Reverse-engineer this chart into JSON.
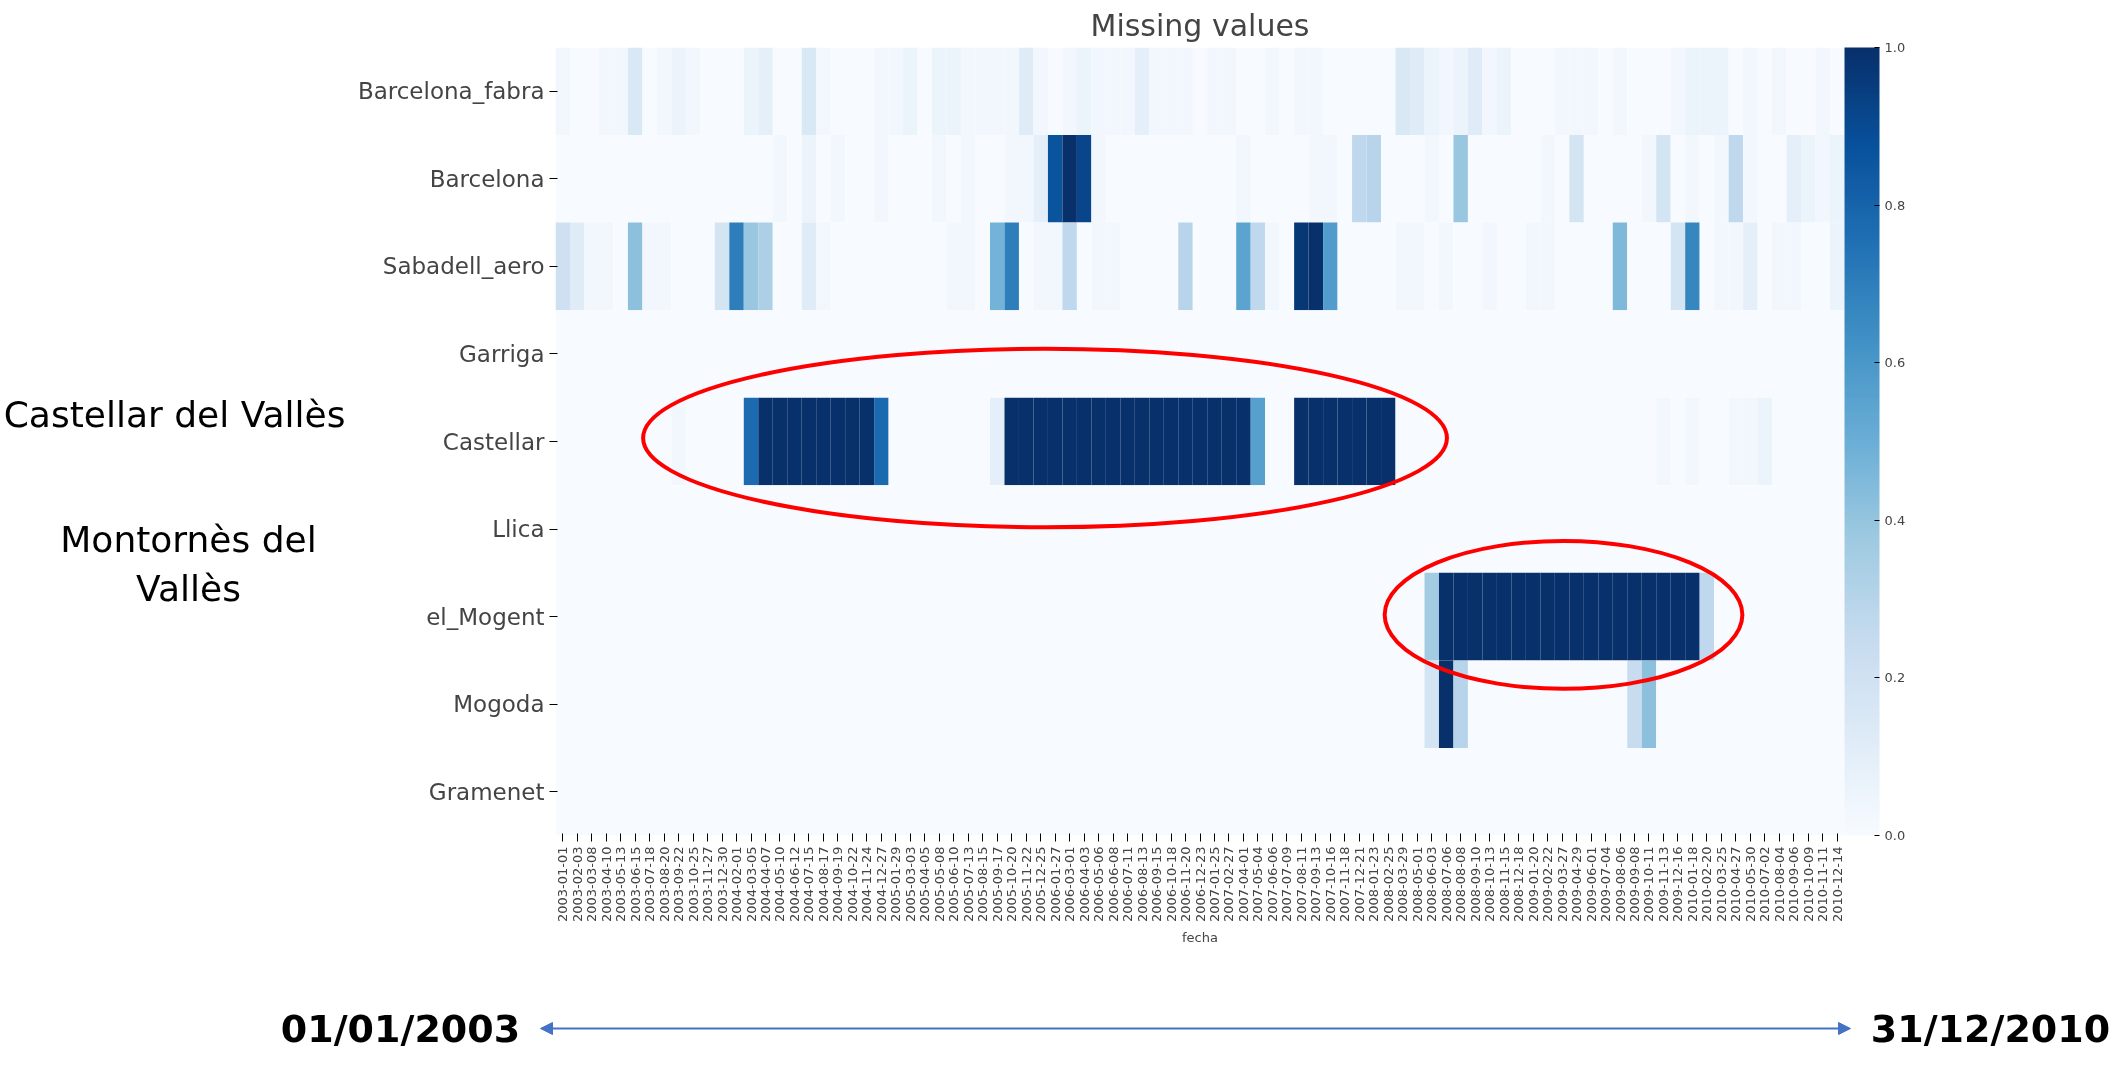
{
  "chart_data": {
    "type": "heatmap",
    "title": "Missing values",
    "xlabel": "fecha",
    "categories": [
      "2003-01-01",
      "2003-02-03",
      "2003-03-08",
      "2003-04-10",
      "2003-05-13",
      "2003-06-15",
      "2003-07-18",
      "2003-08-20",
      "2003-09-22",
      "2003-10-25",
      "2003-11-27",
      "2003-12-30",
      "2004-02-01",
      "2004-03-05",
      "2004-04-07",
      "2004-05-10",
      "2004-06-12",
      "2004-07-15",
      "2004-08-17",
      "2004-09-19",
      "2004-10-22",
      "2004-11-24",
      "2004-12-27",
      "2005-01-29",
      "2005-03-03",
      "2005-04-05",
      "2005-05-08",
      "2005-06-10",
      "2005-07-13",
      "2005-08-15",
      "2005-09-17",
      "2005-10-20",
      "2005-11-22",
      "2005-12-25",
      "2006-01-27",
      "2006-03-01",
      "2006-04-03",
      "2006-05-06",
      "2006-06-08",
      "2006-07-11",
      "2006-08-13",
      "2006-09-15",
      "2006-10-18",
      "2006-11-20",
      "2006-12-23",
      "2007-01-25",
      "2007-02-27",
      "2007-04-01",
      "2007-05-04",
      "2007-06-06",
      "2007-07-09",
      "2007-08-11",
      "2007-09-13",
      "2007-10-16",
      "2007-11-18",
      "2007-12-21",
      "2008-01-23",
      "2008-02-25",
      "2008-03-29",
      "2008-05-01",
      "2008-06-03",
      "2008-07-06",
      "2008-08-08",
      "2008-09-10",
      "2008-10-13",
      "2008-11-15",
      "2008-12-18",
      "2009-01-20",
      "2009-02-22",
      "2009-03-27",
      "2009-04-29",
      "2009-06-01",
      "2009-07-04",
      "2009-08-06",
      "2009-09-08",
      "2009-10-11",
      "2009-11-13",
      "2009-12-16",
      "2010-01-18",
      "2010-02-20",
      "2010-03-25",
      "2010-04-27",
      "2010-05-30",
      "2010-07-02",
      "2010-08-04",
      "2010-09-06",
      "2010-10-09",
      "2010-11-11",
      "2010-12-14"
    ],
    "y_categories": [
      "Barcelona_fabra",
      "Barcelona",
      "Sabadell_aero",
      "Garriga",
      "Castellar",
      "Llica",
      "el_Mogent",
      "Mogoda",
      "Gramenet"
    ],
    "cells": [
      [
        0.03,
        0,
        0,
        0.03,
        0.03,
        0.15,
        0,
        0.03,
        0.06,
        0.03,
        0,
        0,
        0,
        0.06,
        0.09,
        0,
        0,
        0.15,
        0.03,
        0,
        0,
        0,
        0.03,
        0.03,
        0.06,
        0,
        0.06,
        0.06,
        0.03,
        0.03,
        0.03,
        0.03,
        0.12,
        0.03,
        0,
        0.03,
        0.06,
        0.03,
        0.03,
        0.03,
        0.09,
        0.03,
        0.03,
        0.03,
        0,
        0.03,
        0.03,
        0,
        0,
        0.03,
        0,
        0.03,
        0.03,
        0,
        0,
        0,
        0,
        0,
        0.15,
        0.12,
        0.06,
        0.03,
        0.06,
        0.12,
        0.03,
        0.06,
        0,
        0,
        0,
        0.03,
        0.03,
        0.03,
        0,
        0.03,
        0,
        0,
        0,
        0.03,
        0.06,
        0.06,
        0.06,
        0,
        0.03,
        0,
        0.03,
        0,
        0,
        0.03,
        0
      ],
      [
        0,
        0,
        0,
        0,
        0,
        0,
        0,
        0,
        0,
        0,
        0,
        0,
        0,
        0,
        0,
        0.03,
        0,
        0.06,
        0,
        0.03,
        0,
        0,
        0.03,
        0,
        0,
        0,
        0.03,
        0,
        0.03,
        0,
        0,
        0.03,
        0.03,
        0.09,
        0.86,
        1,
        0.92,
        0.03,
        0,
        0,
        0,
        0,
        0,
        0,
        0,
        0,
        0,
        0.03,
        0,
        0,
        0,
        0,
        0.03,
        0.03,
        0,
        0.27,
        0.3,
        0,
        0,
        0,
        0.03,
        0,
        0.39,
        0,
        0,
        0,
        0,
        0,
        0.03,
        0,
        0.18,
        0,
        0,
        0,
        0,
        0.03,
        0.18,
        0,
        0.03,
        0,
        0.03,
        0.27,
        0.03,
        0,
        0,
        0.09,
        0.06,
        0.03,
        0.06
      ],
      [
        0.21,
        0.12,
        0.03,
        0.03,
        0,
        0.42,
        0.03,
        0.03,
        0,
        0,
        0,
        0.18,
        0.7,
        0.39,
        0.33,
        0,
        0,
        0.12,
        0.03,
        0,
        0,
        0,
        0,
        0,
        0,
        0,
        0,
        0.03,
        0.03,
        0,
        0.48,
        0.7,
        0,
        0.03,
        0.03,
        0.27,
        0,
        0.03,
        0.03,
        0,
        0,
        0,
        0,
        0.3,
        0,
        0,
        0,
        0.55,
        0.27,
        0.03,
        0,
        0.97,
        1,
        0.58,
        0,
        0,
        0,
        0,
        0.03,
        0.03,
        0,
        0.03,
        0,
        0,
        0.03,
        0,
        0,
        0.03,
        0.03,
        0,
        0,
        0,
        0,
        0.45,
        0,
        0,
        0,
        0.18,
        0.67,
        0,
        0.03,
        0.03,
        0.09,
        0,
        0.03,
        0.03,
        0,
        0,
        0.06
      ],
      [
        0,
        0,
        0,
        0,
        0,
        0,
        0,
        0,
        0,
        0,
        0,
        0,
        0,
        0,
        0,
        0,
        0,
        0,
        0,
        0,
        0,
        0,
        0,
        0,
        0,
        0,
        0,
        0,
        0,
        0,
        0,
        0,
        0,
        0,
        0,
        0,
        0,
        0,
        0,
        0,
        0,
        0,
        0,
        0,
        0,
        0,
        0,
        0,
        0,
        0,
        0,
        0,
        0,
        0,
        0,
        0,
        0,
        0,
        0,
        0,
        0,
        0,
        0,
        0,
        0,
        0,
        0,
        0,
        0,
        0,
        0,
        0,
        0,
        0,
        0,
        0,
        0,
        0,
        0,
        0,
        0,
        0,
        0,
        0,
        0,
        0,
        0,
        0,
        0
      ],
      [
        0,
        0,
        0,
        0,
        0,
        0,
        0,
        0,
        0.03,
        0,
        0,
        0,
        0,
        0.77,
        1,
        1,
        1,
        1,
        1,
        1,
        1,
        1,
        0.78,
        0,
        0,
        0,
        0,
        0,
        0,
        0,
        0.09,
        1,
        1,
        1,
        1,
        1,
        1,
        1,
        1,
        1,
        1,
        1,
        1,
        1,
        1,
        1,
        1,
        1,
        0.56,
        0,
        0,
        1,
        1,
        1,
        1,
        1,
        1,
        1,
        0,
        0,
        0,
        0,
        0,
        0,
        0,
        0,
        0,
        0,
        0,
        0,
        0,
        0,
        0,
        0,
        0,
        0,
        0.03,
        0,
        0.03,
        0,
        0,
        0.03,
        0.03,
        0.06,
        0,
        0,
        0,
        0,
        0
      ],
      [
        0,
        0,
        0,
        0,
        0,
        0,
        0,
        0,
        0,
        0,
        0,
        0,
        0,
        0,
        0,
        0,
        0,
        0,
        0,
        0,
        0,
        0,
        0,
        0,
        0,
        0,
        0,
        0,
        0,
        0,
        0,
        0,
        0,
        0,
        0,
        0,
        0,
        0,
        0,
        0,
        0,
        0,
        0,
        0,
        0,
        0,
        0,
        0,
        0,
        0,
        0,
        0,
        0,
        0,
        0,
        0,
        0,
        0,
        0,
        0,
        0,
        0,
        0,
        0,
        0,
        0,
        0,
        0,
        0,
        0,
        0,
        0,
        0,
        0,
        0,
        0,
        0,
        0,
        0,
        0,
        0,
        0,
        0,
        0,
        0,
        0,
        0,
        0,
        0
      ],
      [
        0,
        0,
        0,
        0,
        0,
        0,
        0,
        0,
        0,
        0,
        0,
        0,
        0,
        0,
        0,
        0,
        0,
        0,
        0,
        0,
        0,
        0,
        0,
        0,
        0,
        0,
        0,
        0,
        0,
        0,
        0,
        0,
        0,
        0,
        0,
        0,
        0,
        0,
        0,
        0,
        0,
        0,
        0,
        0,
        0,
        0,
        0,
        0,
        0,
        0,
        0,
        0,
        0,
        0,
        0,
        0,
        0,
        0,
        0,
        0,
        0.36,
        1,
        1,
        1,
        1,
        1,
        1,
        1,
        1,
        1,
        1,
        1,
        1,
        1,
        1,
        1,
        1,
        1,
        1,
        0.27,
        0,
        0,
        0,
        0,
        0,
        0,
        0,
        0,
        0
      ],
      [
        0,
        0,
        0,
        0,
        0,
        0,
        0,
        0,
        0,
        0,
        0,
        0,
        0,
        0,
        0,
        0,
        0,
        0,
        0,
        0,
        0,
        0,
        0,
        0,
        0,
        0,
        0,
        0,
        0,
        0,
        0,
        0,
        0,
        0,
        0,
        0,
        0,
        0,
        0,
        0,
        0,
        0,
        0,
        0,
        0,
        0,
        0,
        0,
        0,
        0,
        0,
        0,
        0,
        0,
        0,
        0,
        0,
        0,
        0,
        0,
        0.18,
        1,
        0.3,
        0,
        0,
        0,
        0,
        0,
        0,
        0,
        0,
        0,
        0,
        0,
        0.24,
        0.42,
        0,
        0,
        0,
        0,
        0,
        0,
        0,
        0,
        0,
        0,
        0,
        0,
        0
      ],
      [
        0,
        0,
        0,
        0,
        0,
        0,
        0,
        0,
        0,
        0,
        0,
        0,
        0,
        0,
        0,
        0,
        0,
        0,
        0,
        0,
        0,
        0,
        0,
        0,
        0,
        0,
        0,
        0,
        0,
        0,
        0,
        0,
        0,
        0,
        0,
        0,
        0,
        0,
        0,
        0,
        0,
        0,
        0,
        0,
        0,
        0,
        0,
        0,
        0,
        0,
        0,
        0,
        0,
        0,
        0,
        0,
        0,
        0,
        0,
        0,
        0,
        0,
        0,
        0,
        0,
        0,
        0,
        0,
        0,
        0,
        0,
        0,
        0,
        0,
        0,
        0,
        0,
        0,
        0,
        0,
        0,
        0,
        0,
        0,
        0,
        0,
        0,
        0,
        0
      ]
    ],
    "clim": [
      0,
      1
    ],
    "cticks": [
      {
        "value": 0,
        "label": "0.0"
      },
      {
        "value": 0.2,
        "label": "0.2"
      },
      {
        "value": 0.4,
        "label": "0.4"
      },
      {
        "value": 0.6,
        "label": "0.6"
      },
      {
        "value": 0.8,
        "label": "0.8"
      },
      {
        "value": 1,
        "label": "1.0"
      }
    ],
    "annotations": [
      "Castellar del Vallès",
      "Montornès del\nVallès",
      "01/01/2003",
      "31/12/2010"
    ]
  }
}
